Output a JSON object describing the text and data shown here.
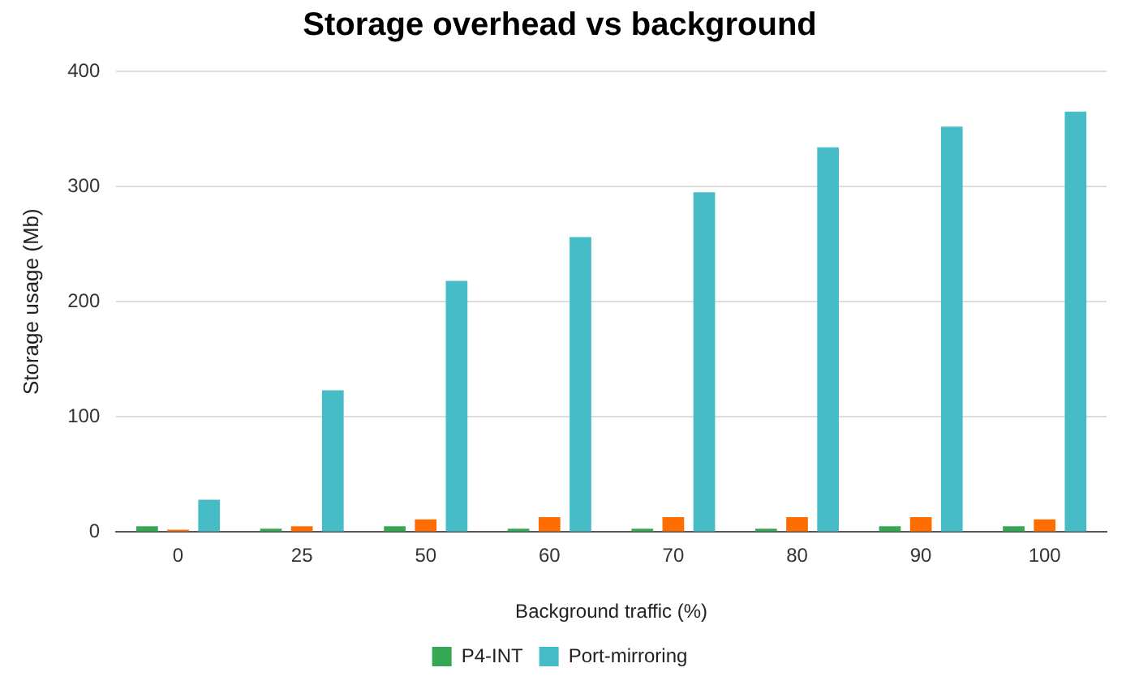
{
  "chart_data": {
    "type": "bar",
    "title": "Storage overhead vs background",
    "xlabel": "Background traffic (%)",
    "ylabel": "Storage usage (Mb)",
    "categories": [
      "0",
      "25",
      "50",
      "60",
      "70",
      "80",
      "90",
      "100"
    ],
    "series": [
      {
        "name": "P4-INT",
        "color": "#34a853",
        "values": [
          5,
          3,
          5,
          3,
          3,
          3,
          5,
          5
        ]
      },
      {
        "color": "#ff6d01",
        "values": [
          2,
          5,
          11,
          13,
          13,
          13,
          13,
          11
        ]
      },
      {
        "name": "Port-mirroring",
        "color": "#46bdc6",
        "values": [
          28,
          123,
          218,
          256,
          295,
          334,
          352,
          365
        ]
      }
    ],
    "ylim": [
      0,
      400
    ],
    "yticks": [
      0,
      100,
      200,
      300,
      400
    ],
    "grid": "y",
    "legend": "bottom"
  }
}
